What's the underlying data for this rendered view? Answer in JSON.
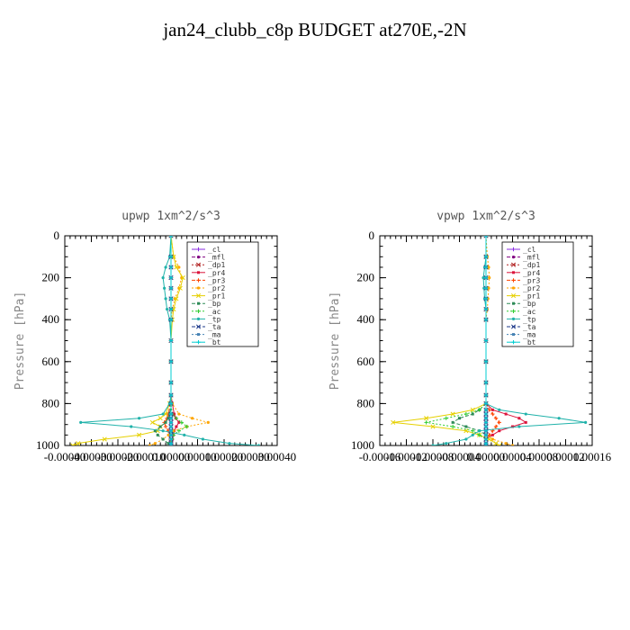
{
  "figure": {
    "title": "jan24_clubb_c8p  BUDGET at270E,-2N"
  },
  "chart_data": [
    {
      "type": "line",
      "title": "upwp   1xm^2/s^3",
      "ylabel": "Pressure [hPa]",
      "ylim": [
        1000,
        0
      ],
      "xlim": [
        -0.0004,
        0.0004
      ],
      "yticks": [
        "0",
        "200",
        "400",
        "600",
        "800",
        "1000"
      ],
      "xticks": [
        "-0.00040",
        "-0.00030",
        "-0.00020",
        "-0.00010",
        "0.00000",
        "0.00010",
        "0.00020",
        "0.00030",
        "0.00040"
      ],
      "legend_position": "top-right",
      "y": [
        0,
        100,
        150,
        200,
        250,
        300,
        350,
        400,
        500,
        600,
        700,
        760,
        800,
        850,
        870,
        890,
        910,
        930,
        950,
        970,
        990,
        1000
      ],
      "series": [
        {
          "name": "_cl",
          "color": "#8a2be2",
          "values": [
            0,
            0,
            0,
            0,
            0,
            0,
            0,
            0,
            0,
            0,
            0,
            0,
            0,
            0,
            0,
            0,
            0,
            0,
            0,
            0,
            0,
            0
          ]
        },
        {
          "name": "_mfl",
          "color": "#800080",
          "values": [
            0,
            0,
            0,
            0,
            0,
            0,
            0,
            0,
            0,
            0,
            0,
            0,
            0,
            0,
            0,
            0,
            0,
            0,
            0,
            0,
            0,
            0
          ]
        },
        {
          "name": "_dp1",
          "color": "#b22222",
          "values": [
            0,
            0,
            0,
            0,
            0,
            0,
            0,
            0,
            0,
            0,
            0,
            0,
            0,
            0,
            0,
            0,
            0,
            0,
            0,
            0,
            0,
            0
          ]
        },
        {
          "name": "_pr4",
          "color": "#dc143c",
          "values": [
            0,
            0,
            0,
            0,
            0,
            0,
            0,
            0,
            0,
            0,
            0,
            0,
            5e-06,
            1.2e-05,
            1.8e-05,
            3e-05,
            2e-05,
            1.2e-05,
            8e-06,
            5e-06,
            3e-06,
            2e-06
          ]
        },
        {
          "name": "_pr3",
          "color": "#ff4500",
          "values": [
            0,
            0,
            0,
            0,
            0,
            0,
            0,
            0,
            0,
            0,
            0,
            0,
            -3e-06,
            -1e-05,
            -1.5e-05,
            -2.5e-05,
            -2e-05,
            -1e-05,
            -5e-06,
            -3e-06,
            -2e-06,
            0
          ]
        },
        {
          "name": "_pr2",
          "color": "#ffa500",
          "values": [
            0,
            1e-05,
            3e-05,
            4e-05,
            3e-05,
            1.5e-05,
            5e-06,
            0,
            0,
            0,
            0,
            0,
            5e-06,
            3e-05,
            8e-05,
            0.00014,
            6e-05,
            1e-05,
            -1e-05,
            -3e-05,
            -6e-05,
            -8e-05
          ]
        },
        {
          "name": "_pr1",
          "color": "#e6d000",
          "values": [
            0,
            1e-05,
            2e-05,
            4.5e-05,
            3.5e-05,
            2e-05,
            1e-05,
            5e-06,
            0,
            0,
            0,
            0,
            -5e-06,
            -2e-05,
            -4e-05,
            -7e-05,
            -4e-05,
            -5e-05,
            -0.00012,
            -0.00025,
            -0.00035,
            -0.00037
          ]
        },
        {
          "name": "_bp",
          "color": "#2e8b57",
          "values": [
            0,
            0,
            0,
            0,
            0,
            0,
            0,
            0,
            0,
            0,
            0,
            0,
            0,
            -5e-06,
            -1e-05,
            -2e-05,
            -4e-05,
            -6e-05,
            -5e-05,
            -3e-05,
            -1e-05,
            0
          ]
        },
        {
          "name": "_ac",
          "color": "#32cd32",
          "values": [
            0,
            0,
            0,
            0,
            0,
            0,
            0,
            0,
            0,
            0,
            0,
            0,
            0,
            5e-06,
            2e-05,
            4e-05,
            6e-05,
            3e-05,
            1e-05,
            5e-06,
            0,
            0
          ]
        },
        {
          "name": "_tp",
          "color": "#20b2aa",
          "values": [
            0,
            -5e-06,
            -2e-05,
            -3e-05,
            -2.5e-05,
            -2e-05,
            -1.5e-05,
            -5e-06,
            0,
            0,
            0,
            0,
            -5e-06,
            -3e-05,
            -0.00012,
            -0.00034,
            -0.00015,
            -3e-05,
            5e-05,
            0.00012,
            0.00022,
            0.00033
          ]
        },
        {
          "name": "_ta",
          "color": "#1e3a8a",
          "values": [
            0,
            0,
            0,
            0,
            0,
            0,
            0,
            0,
            0,
            0,
            0,
            0,
            0,
            0,
            0,
            0,
            0,
            0,
            0,
            0,
            0,
            0
          ]
        },
        {
          "name": "_ma",
          "color": "#4682b4",
          "values": [
            0,
            0,
            0,
            0,
            0,
            0,
            0,
            0,
            0,
            0,
            0,
            0,
            0,
            0,
            0,
            0,
            0,
            0,
            0,
            0,
            0,
            0
          ]
        },
        {
          "name": "_bt",
          "color": "#00ced1",
          "values": [
            0,
            0,
            0,
            0,
            0,
            0,
            0,
            0,
            0,
            0,
            0,
            0,
            0,
            0,
            0,
            0,
            0,
            0,
            0,
            0,
            0,
            0
          ]
        }
      ]
    },
    {
      "type": "line",
      "title": "vpwp   1xm^2/s^3",
      "ylabel": "Pressure [hPa]",
      "ylim": [
        1000,
        0
      ],
      "xlim": [
        -0.00016,
        0.00016
      ],
      "yticks": [
        "0",
        "200",
        "400",
        "600",
        "800",
        "1000"
      ],
      "xticks": [
        "-0.00016",
        "-0.00012",
        "-0.00008",
        "-0.00004",
        "0.00000",
        "0.00004",
        "0.00008",
        "0.00012",
        "0.00016"
      ],
      "legend_position": "top-right",
      "y": [
        0,
        100,
        150,
        200,
        250,
        300,
        350,
        400,
        500,
        600,
        700,
        760,
        800,
        830,
        850,
        870,
        890,
        910,
        930,
        950,
        970,
        990,
        1000
      ],
      "series": [
        {
          "name": "_cl",
          "color": "#8a2be2",
          "values": [
            0,
            0,
            0,
            0,
            0,
            0,
            0,
            0,
            0,
            0,
            0,
            0,
            0,
            0,
            0,
            0,
            0,
            0,
            0,
            0,
            0,
            0,
            0
          ]
        },
        {
          "name": "_mfl",
          "color": "#800080",
          "values": [
            0,
            0,
            0,
            0,
            0,
            0,
            0,
            0,
            0,
            0,
            0,
            0,
            0,
            0,
            0,
            0,
            0,
            0,
            0,
            0,
            0,
            0,
            0
          ]
        },
        {
          "name": "_dp1",
          "color": "#b22222",
          "values": [
            0,
            0,
            0,
            0,
            0,
            0,
            0,
            0,
            0,
            0,
            0,
            0,
            0,
            0,
            0,
            0,
            0,
            0,
            0,
            0,
            0,
            0,
            0
          ]
        },
        {
          "name": "_pr4",
          "color": "#dc143c",
          "values": [
            0,
            0,
            0,
            0,
            0,
            0,
            0,
            0,
            0,
            0,
            0,
            0,
            0,
            1e-05,
            3e-05,
            5e-05,
            6e-05,
            4e-05,
            2e-05,
            1e-05,
            0,
            0,
            0
          ]
        },
        {
          "name": "_pr3",
          "color": "#ff4500",
          "values": [
            0,
            0,
            0,
            0,
            0,
            0,
            0,
            0,
            0,
            0,
            0,
            0,
            0,
            5e-06,
            1e-05,
            1.5e-05,
            2e-05,
            1.5e-05,
            1e-05,
            5e-06,
            0,
            0,
            0
          ]
        },
        {
          "name": "_pr2",
          "color": "#ffa500",
          "values": [
            0,
            2e-06,
            4e-06,
            5e-06,
            4e-06,
            3e-06,
            2e-06,
            0,
            0,
            0,
            0,
            0,
            0,
            0,
            0,
            0,
            0,
            0,
            0,
            0,
            1e-05,
            3e-05,
            4e-05
          ]
        },
        {
          "name": "_pr1",
          "color": "#e6d000",
          "values": [
            0,
            0,
            0,
            0,
            0,
            0,
            0,
            0,
            0,
            0,
            0,
            0,
            0,
            -2e-05,
            -5e-05,
            -9e-05,
            -0.00014,
            -8e-05,
            -3e-05,
            -1e-05,
            5e-06,
            1.5e-05,
            2e-05
          ]
        },
        {
          "name": "_bp",
          "color": "#2e8b57",
          "values": [
            0,
            0,
            0,
            0,
            0,
            0,
            0,
            0,
            0,
            0,
            0,
            0,
            0,
            -1e-05,
            -2e-05,
            -4e-05,
            -5e-05,
            -3e-05,
            -1e-05,
            0,
            0,
            0,
            0
          ]
        },
        {
          "name": "_ac",
          "color": "#32cd32",
          "values": [
            0,
            0,
            0,
            0,
            0,
            0,
            0,
            0,
            0,
            0,
            0,
            0,
            0,
            -1e-05,
            -3e-05,
            -6e-05,
            -9e-05,
            -5e-05,
            -2e-05,
            -1e-05,
            0,
            0,
            0
          ]
        },
        {
          "name": "_tp",
          "color": "#20b2aa",
          "values": [
            0,
            0,
            -2e-06,
            -4e-06,
            -3e-06,
            -2e-06,
            0,
            0,
            0,
            0,
            0,
            0,
            0,
            2e-05,
            6e-05,
            0.00011,
            0.00015,
            5e-05,
            -1e-05,
            -2e-05,
            -3e-05,
            -6e-05,
            -8e-05
          ]
        },
        {
          "name": "_ta",
          "color": "#1e3a8a",
          "values": [
            0,
            0,
            0,
            0,
            0,
            0,
            0,
            0,
            0,
            0,
            0,
            0,
            0,
            0,
            0,
            0,
            0,
            0,
            0,
            0,
            0,
            0,
            0
          ]
        },
        {
          "name": "_ma",
          "color": "#4682b4",
          "values": [
            0,
            0,
            0,
            0,
            0,
            0,
            0,
            0,
            0,
            0,
            0,
            0,
            0,
            0,
            0,
            0,
            0,
            0,
            0,
            0,
            0,
            0,
            0
          ]
        },
        {
          "name": "_bt",
          "color": "#00ced1",
          "values": [
            0,
            0,
            0,
            0,
            0,
            0,
            0,
            0,
            0,
            0,
            0,
            0,
            0,
            0,
            0,
            0,
            0,
            0,
            0,
            0,
            0,
            0,
            0
          ]
        }
      ]
    }
  ]
}
